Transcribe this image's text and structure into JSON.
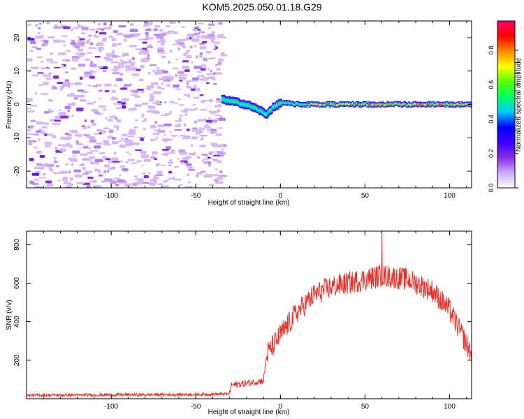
{
  "title": "KOM5.2025.050.01.18.G29",
  "chart_data": [
    {
      "type": "heatmap",
      "xlabel": "Height of straight line (km)",
      "ylabel": "Frequency (Hz)",
      "xlim": [
        -150,
        113
      ],
      "ylim": [
        -25,
        25
      ],
      "xticks": [
        -100,
        -50,
        0,
        50,
        100
      ],
      "yticks": [
        -20,
        -10,
        0,
        10,
        20
      ],
      "noise_region": [
        -150,
        -35
      ],
      "signal_track": [
        {
          "x": -35,
          "y": 1.5
        },
        {
          "x": -25,
          "y": 0.5
        },
        {
          "x": -18,
          "y": -0.5
        },
        {
          "x": -12,
          "y": -2
        },
        {
          "x": -9,
          "y": -3
        },
        {
          "x": -5,
          "y": -1
        },
        {
          "x": 0,
          "y": 0.5
        },
        {
          "x": 10,
          "y": 0
        },
        {
          "x": 30,
          "y": 0
        },
        {
          "x": 60,
          "y": 0
        },
        {
          "x": 90,
          "y": 0
        },
        {
          "x": 113,
          "y": 0
        }
      ],
      "colorbar": {
        "label": "Normalized spectral amplitude",
        "ticks": [
          "0.0",
          "0.2",
          "0.4",
          "0.6",
          "0.8"
        ],
        "min": 0,
        "max": 0.97,
        "colors": [
          "#ffffff",
          "#c9a9f5",
          "#8a2be2",
          "#3a00ff",
          "#0000ff",
          "#00ccff",
          "#00ff66",
          "#55ff00",
          "#ffff00",
          "#ff8800",
          "#ff0000",
          "#ff0066"
        ]
      }
    },
    {
      "type": "line",
      "xlabel": "Height of straight line (km)",
      "ylabel": "SNR (v/v)",
      "xlim": [
        -150,
        113
      ],
      "ylim": [
        0,
        870
      ],
      "xticks": [
        -100,
        -50,
        0,
        50,
        100
      ],
      "yticks": [
        200,
        400,
        600,
        800
      ],
      "color": "#e8322b",
      "envelope": [
        {
          "x": -150,
          "y": 18
        },
        {
          "x": -100,
          "y": 20
        },
        {
          "x": -50,
          "y": 22
        },
        {
          "x": -30,
          "y": 25
        },
        {
          "x": -29,
          "y": 70
        },
        {
          "x": -20,
          "y": 80
        },
        {
          "x": -10,
          "y": 95
        },
        {
          "x": -8,
          "y": 230
        },
        {
          "x": 0,
          "y": 330
        },
        {
          "x": 10,
          "y": 450
        },
        {
          "x": 20,
          "y": 540
        },
        {
          "x": 30,
          "y": 580
        },
        {
          "x": 45,
          "y": 610
        },
        {
          "x": 60,
          "y": 640
        },
        {
          "x": 75,
          "y": 620
        },
        {
          "x": 90,
          "y": 560
        },
        {
          "x": 100,
          "y": 460
        },
        {
          "x": 108,
          "y": 320
        },
        {
          "x": 113,
          "y": 230
        }
      ],
      "peak": {
        "x": 60,
        "y": 860
      }
    }
  ]
}
